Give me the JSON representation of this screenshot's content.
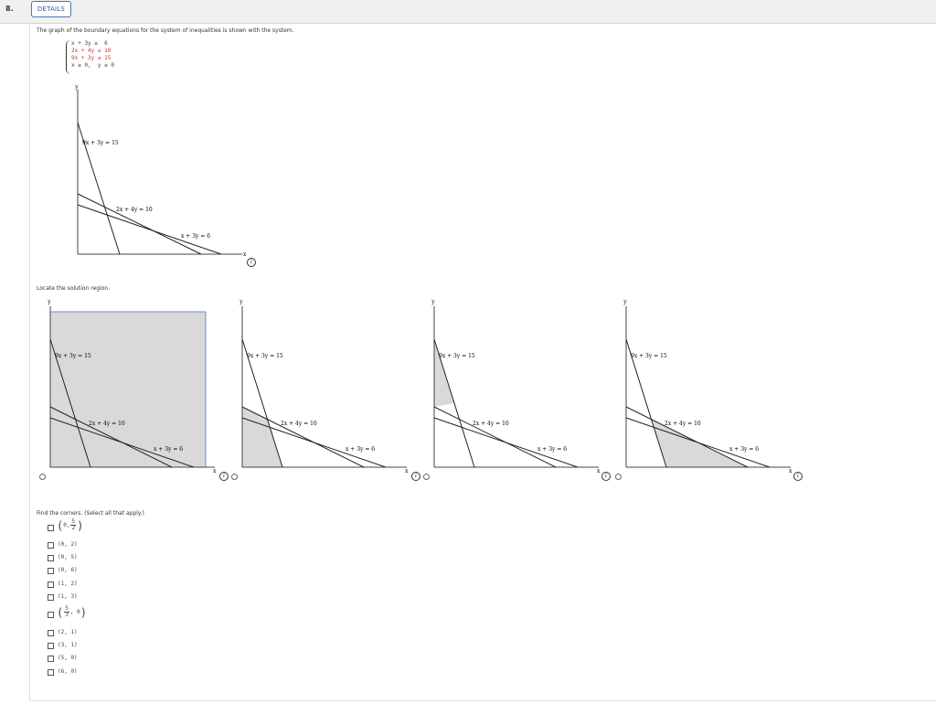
{
  "header": {
    "question_number": "8.",
    "details_label": "DETAILS"
  },
  "intro_text": "The graph of the boundary equations for the system of inequalities is shown with the system.",
  "system": [
    "x + 3y ≥  6",
    "2x + 4y ≥ 10",
    "9x + 3y ≥ 15",
    "x ≥ 0,  y ≥ 0"
  ],
  "graph_labels": {
    "y": "y",
    "x": "x",
    "line1": "9x + 3y = 15",
    "line2": "2x + 4y = 10",
    "line3": "x + 3y = 6"
  },
  "locate_prompt": "Locate the solution region.",
  "info_symbol": "i",
  "options_shading": [
    "unbounded region above all lines (boxed)",
    "region below 2x+4y=10 near origin",
    "region between axis and 9x+3y=15 above lines",
    "region between lines near x-axis"
  ],
  "corners_prompt": "Find the corners. (Select all that apply.)",
  "corner_choices": [
    {
      "type": "frac-y",
      "x": "0,",
      "num": "5",
      "den": "2"
    },
    {
      "type": "text",
      "label": "(0, 2)"
    },
    {
      "type": "text",
      "label": "(0, 5)"
    },
    {
      "type": "text",
      "label": "(0, 6)"
    },
    {
      "type": "text",
      "label": "(1, 2)"
    },
    {
      "type": "text",
      "label": "(1, 3)"
    },
    {
      "type": "frac-x",
      "num": "5",
      "den": "3",
      "y": ", 0"
    },
    {
      "type": "text",
      "label": "(2, 1)"
    },
    {
      "type": "text",
      "label": "(3, 1)"
    },
    {
      "type": "text",
      "label": "(5, 0)"
    },
    {
      "type": "text",
      "label": "(6, 0)"
    }
  ]
}
